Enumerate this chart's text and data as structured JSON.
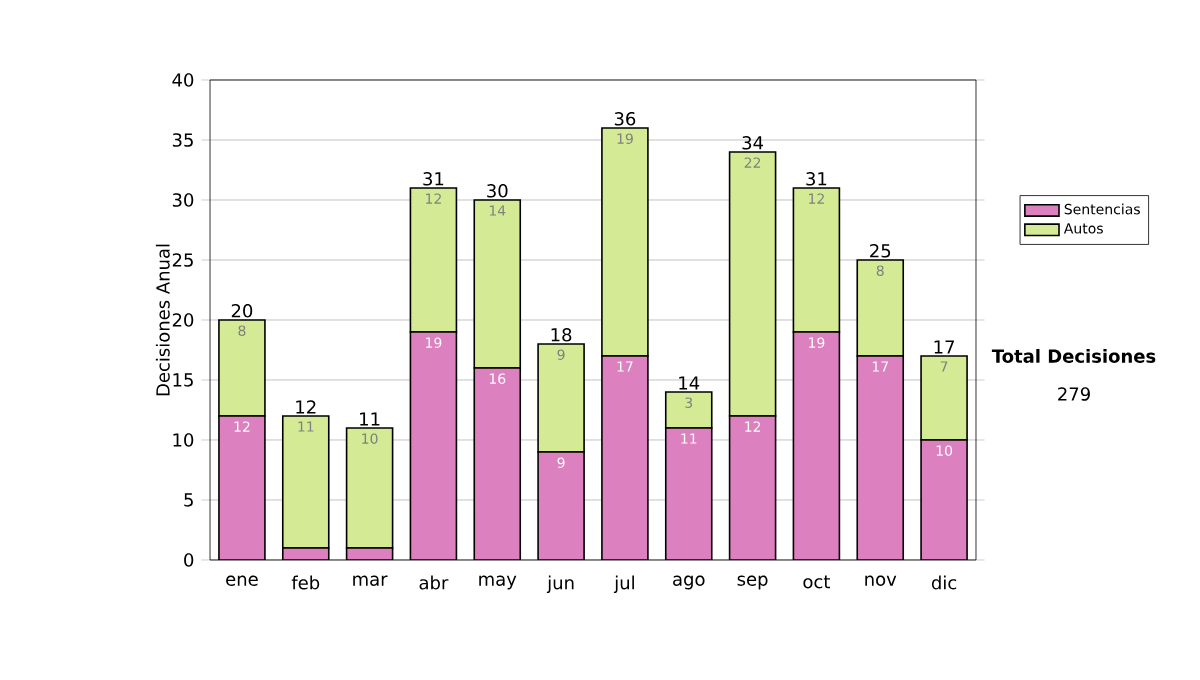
{
  "chart_data": {
    "type": "bar",
    "stacked": true,
    "ylabel": "Decisiones Anual",
    "categories": [
      "ene",
      "feb",
      "mar",
      "abr",
      "may",
      "jun",
      "jul",
      "ago",
      "sep",
      "oct",
      "nov",
      "dic"
    ],
    "series": [
      {
        "name": "Sentencias",
        "color": "#dd80c0",
        "values": [
          12,
          1,
          1,
          19,
          16,
          9,
          17,
          11,
          12,
          19,
          17,
          10
        ],
        "value_labels": [
          "12",
          null,
          null,
          "19",
          "16",
          "9",
          "17",
          "11",
          "12",
          "19",
          "17",
          "10"
        ]
      },
      {
        "name": "Autos",
        "color": "#d4ea94",
        "values": [
          8,
          11,
          10,
          12,
          14,
          9,
          19,
          3,
          22,
          12,
          8,
          7
        ],
        "value_labels": [
          "8",
          "11",
          "10",
          "12",
          "14",
          "9",
          "19",
          "3",
          "22",
          "12",
          "8",
          "7"
        ]
      }
    ],
    "totals": [
      "20",
      "12",
      "11",
      "31",
      "30",
      "18",
      "36",
      "14",
      "34",
      "31",
      "25",
      "17"
    ],
    "ylim": [
      0,
      40
    ],
    "yticks": [
      0,
      5,
      10,
      15,
      20,
      25,
      30,
      35,
      40
    ],
    "grid": "y",
    "legend": "right",
    "annotations": [
      "Total Decisiones",
      "279"
    ]
  }
}
